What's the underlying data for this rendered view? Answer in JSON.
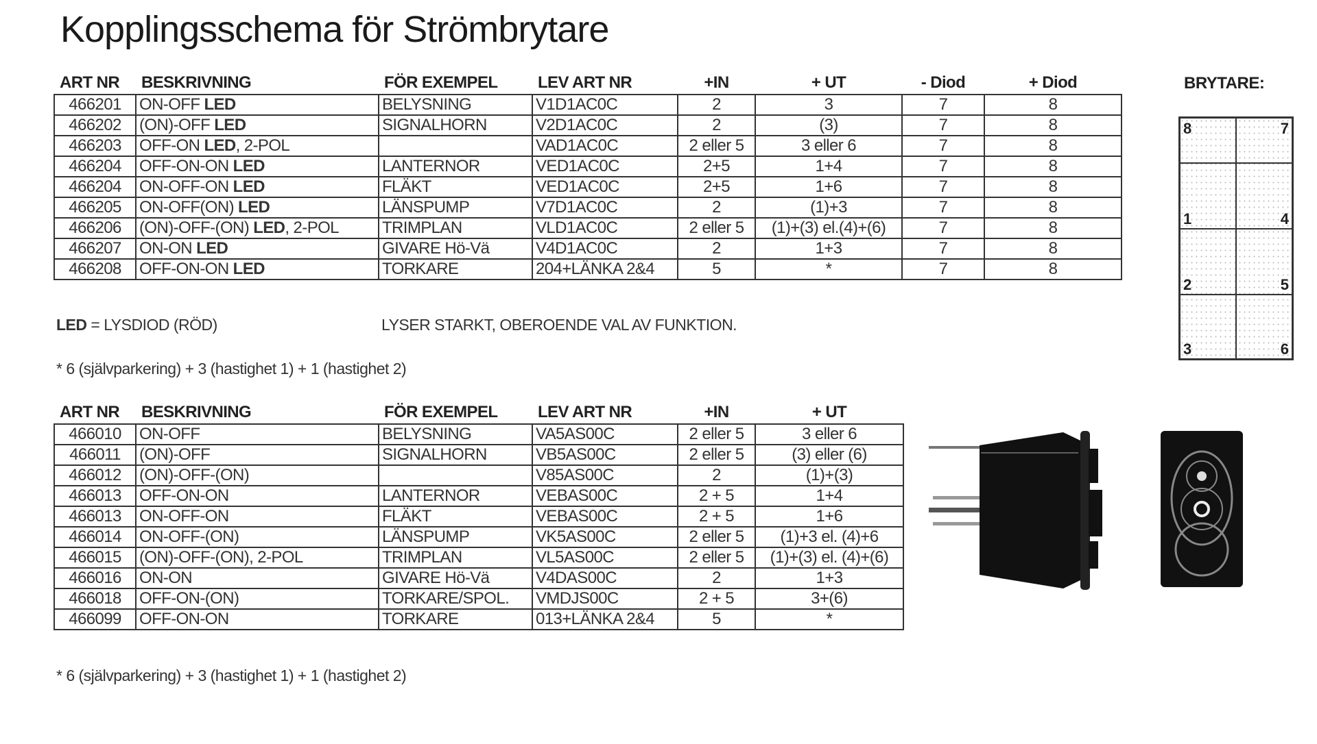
{
  "title": "Kopplingsschema för Strömbrytare",
  "table1": {
    "headers": [
      "ART NR",
      "BESKRIVNING",
      "FÖR EXEMPEL",
      "LEV ART NR",
      "+IN",
      "+ UT",
      "- Diod",
      "+ Diod"
    ],
    "rows": [
      [
        "466201",
        "ON-OFF LED",
        "BELYSNING",
        "V1D1AC0C",
        "2",
        "3",
        "7",
        "8"
      ],
      [
        "466202",
        "(ON)-OFF LED",
        "SIGNALHORN",
        "V2D1AC0C",
        "2",
        "(3)",
        "7",
        "8"
      ],
      [
        "466203",
        "OFF-ON LED, 2-POL",
        "",
        "VAD1AC0C",
        "2 eller 5",
        "3 eller 6",
        "7",
        "8"
      ],
      [
        "466204",
        "OFF-ON-ON LED",
        "LANTERNOR",
        "VED1AC0C",
        "2+5",
        "1+4",
        "7",
        "8"
      ],
      [
        "466204",
        "ON-OFF-ON LED",
        "FLÄKT",
        "VED1AC0C",
        "2+5",
        "1+6",
        "7",
        "8"
      ],
      [
        "466205",
        "ON-OFF(ON) LED",
        "LÄNSPUMP",
        "V7D1AC0C",
        "2",
        "(1)+3",
        "7",
        "8"
      ],
      [
        "466206",
        "(ON)-OFF-(ON) LED, 2-POL",
        "TRIMPLAN",
        "VLD1AC0C",
        "2 eller 5",
        "(1)+(3) el.(4)+(6)",
        "7",
        "8"
      ],
      [
        "466207",
        "ON-ON LED",
        "GIVARE Hö-Vä",
        "V4D1AC0C",
        "2",
        "1+3",
        "7",
        "8"
      ],
      [
        "466208",
        "OFF-ON-ON LED",
        "TORKARE",
        "204+LÄNKA 2&4",
        "5",
        "*",
        "7",
        "8"
      ]
    ]
  },
  "legend": {
    "led_key": "LED",
    "led_text": " = LYSDIOD (RÖD)",
    "led_note": "LYSER STARKT, OBEROENDE VAL AV FUNKTION.",
    "footnote1": "* 6 (självparkering) + 3 (hastighet 1) + 1 (hastighet 2)"
  },
  "table2": {
    "headers": [
      "ART NR",
      "BESKRIVNING",
      "FÖR EXEMPEL",
      "LEV ART NR",
      "+IN",
      "+ UT"
    ],
    "rows": [
      [
        "466010",
        "ON-OFF",
        "BELYSNING",
        "VA5AS00C",
        "2 eller 5",
        "3 eller 6"
      ],
      [
        "466011",
        "(ON)-OFF",
        "SIGNALHORN",
        "VB5AS00C",
        "2 eller 5",
        "(3) eller (6)"
      ],
      [
        "466012",
        "(ON)-OFF-(ON)",
        "",
        "V85AS00C",
        "2",
        "(1)+(3)"
      ],
      [
        "466013",
        "OFF-ON-ON",
        "LANTERNOR",
        "VEBAS00C",
        "2 + 5",
        "1+4"
      ],
      [
        "466013",
        "ON-OFF-ON",
        "FLÄKT",
        "VEBAS00C",
        "2 + 5",
        "1+6"
      ],
      [
        "466014",
        "ON-OFF-(ON)",
        "LÄNSPUMP",
        "VK5AS00C",
        "2 eller 5",
        "(1)+3 el. (4)+6"
      ],
      [
        "466015",
        "(ON)-OFF-(ON), 2-POL",
        "TRIMPLAN",
        "VL5AS00C",
        "2 eller 5",
        "(1)+(3) el. (4)+(6)"
      ],
      [
        "466016",
        "ON-ON",
        "GIVARE Hö-Vä",
        "V4DAS00C",
        "2",
        "1+3"
      ],
      [
        "466018",
        "OFF-ON-(ON)",
        "TORKARE/SPOL.",
        "VMDJS00C",
        "2 + 5",
        "3+(6)"
      ],
      [
        "466099",
        "OFF-ON-ON",
        "TORKARE",
        "013+LÄNKA 2&4",
        "5",
        "*"
      ]
    ]
  },
  "footnote2": "* 6 (självparkering) + 3 (hastighet 1) + 1 (hastighet 2)",
  "brytare": {
    "label": "BRYTARE:",
    "terminals": [
      "8",
      "7",
      "1",
      "4",
      "2",
      "5",
      "3",
      "6"
    ]
  },
  "images": {
    "side_view_icon": "rocker-switch-side-view",
    "front_view_icon": "rocker-switch-front-view"
  }
}
